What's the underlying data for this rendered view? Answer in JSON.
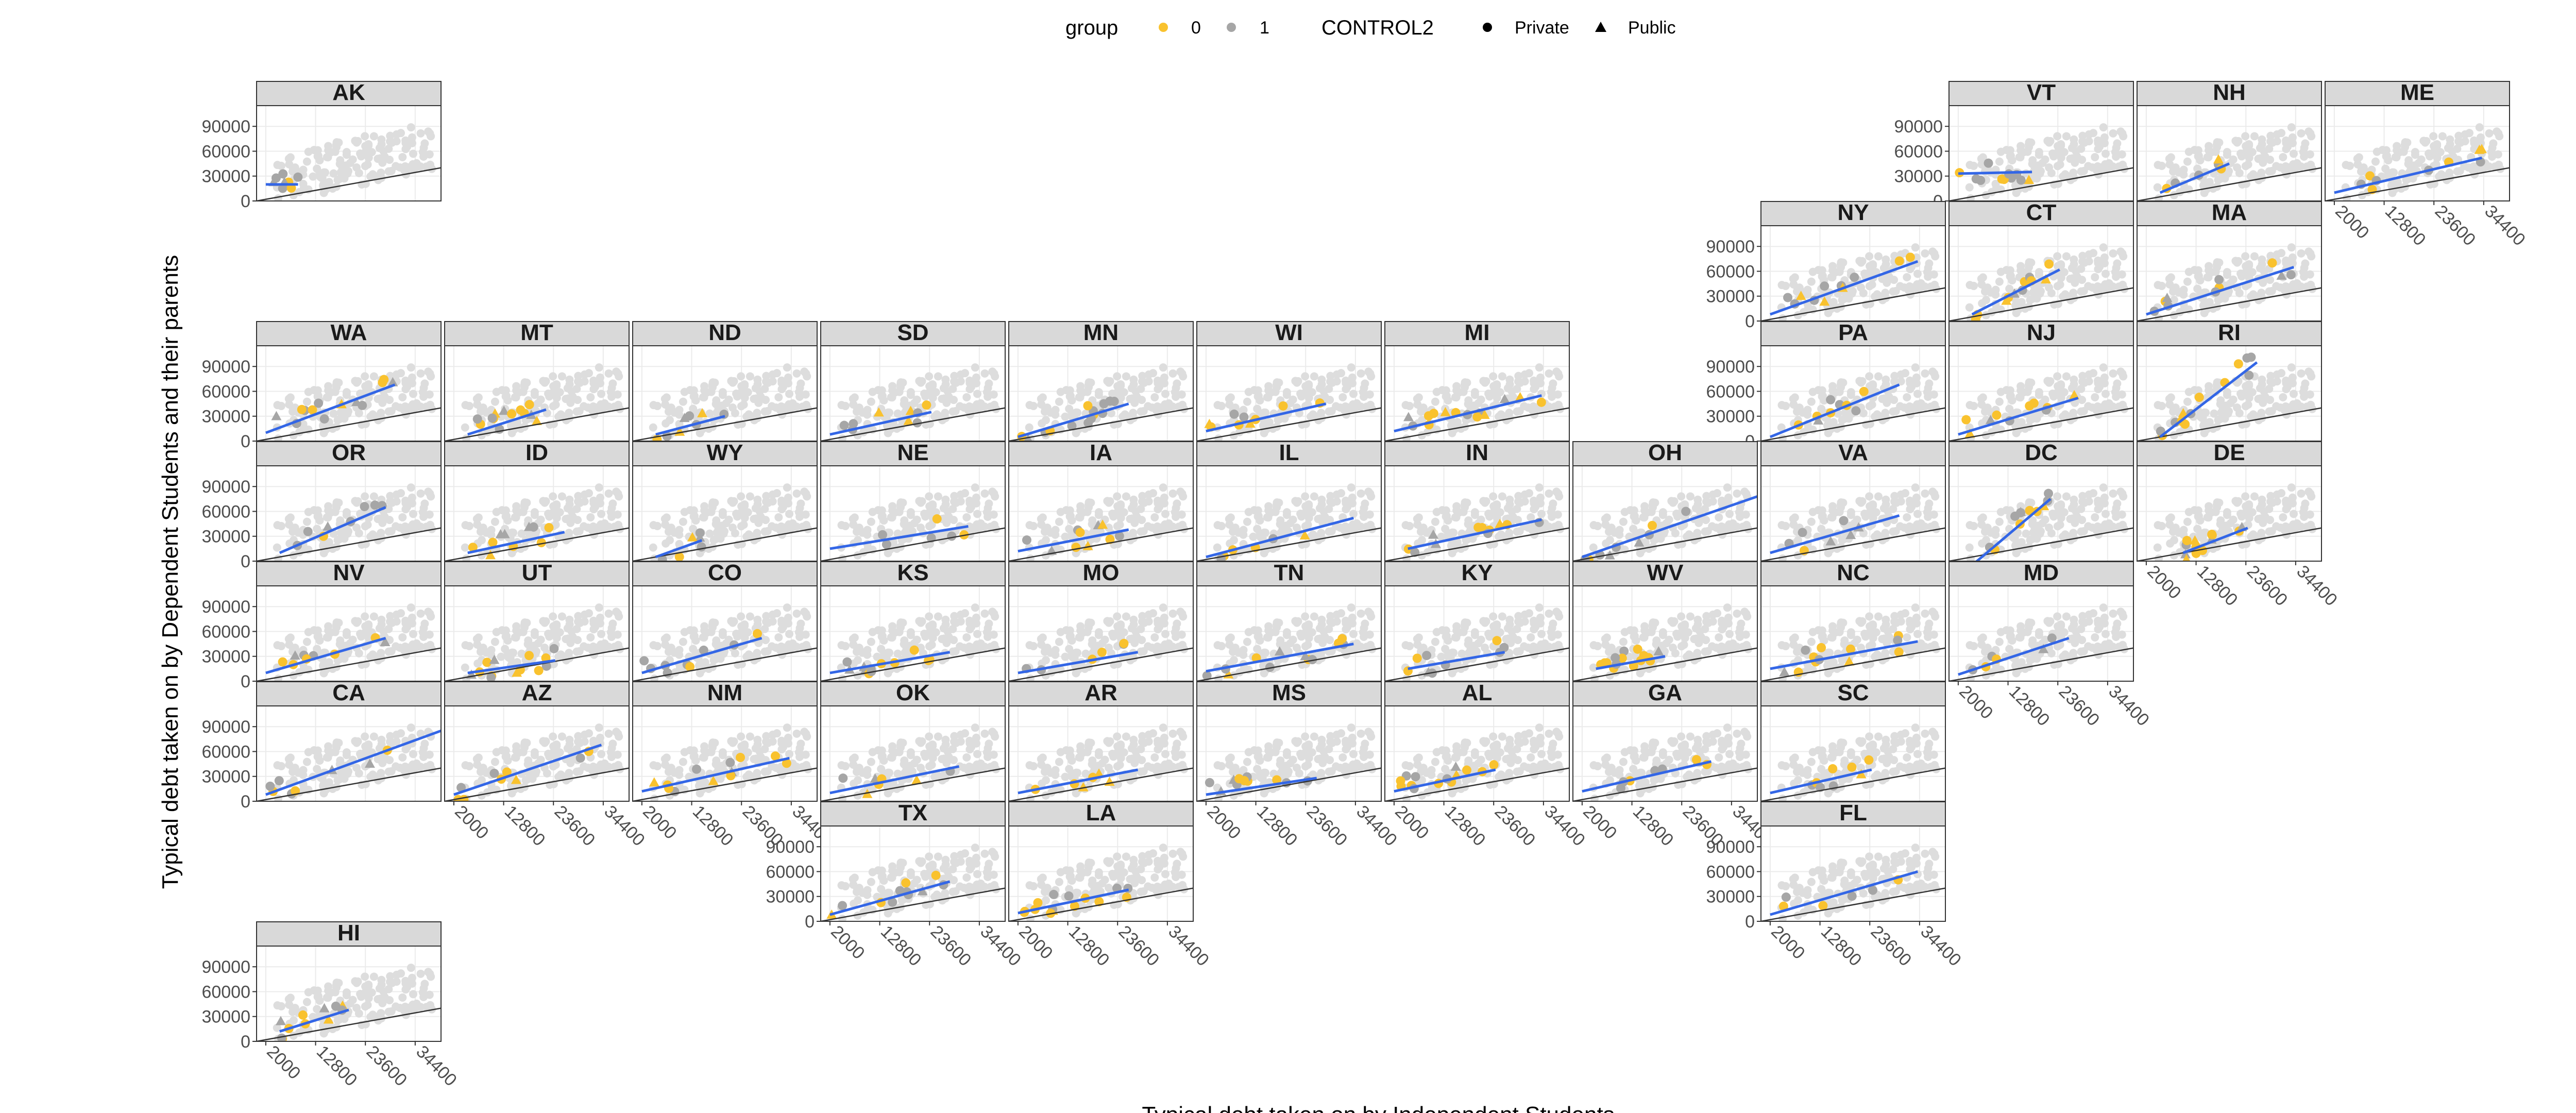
{
  "chart_data": {
    "type": "scatter",
    "xlabel": "Typical debt taken on by Independent Students",
    "ylabel": "Typical debt taken on by Dependent Students and their parents",
    "xticks": [
      2000,
      12800,
      23600,
      34400
    ],
    "yticks": [
      0,
      30000,
      60000,
      90000
    ],
    "xlim": [
      0,
      40000
    ],
    "ylim": [
      0,
      115000
    ],
    "reference_line": {
      "intercept": 0,
      "slope": 1
    },
    "legend": {
      "group_title": "group",
      "group_items": [
        {
          "label": "0",
          "color": "#F9C22E"
        },
        {
          "label": "1",
          "color": "#A6A6A6"
        }
      ],
      "shape_title": "CONTROL2",
      "shape_items": [
        {
          "label": "Private",
          "shape": "circle"
        },
        {
          "label": "Public",
          "shape": "triangle"
        }
      ]
    },
    "colors": {
      "group0": "#F9C22E",
      "group1": "#A6A6A6",
      "background_points": "#DDDDDD",
      "fit_line": "#3366E6",
      "reference_line": "#333333",
      "strip": "#D9D9D9"
    },
    "panels": [
      {
        "state": "AK",
        "fit": [
          [
            2000,
            20000
          ],
          [
            9000,
            20000
          ]
        ]
      },
      {
        "state": "VT",
        "fit": [
          [
            2000,
            33000
          ],
          [
            18000,
            35000
          ]
        ]
      },
      {
        "state": "NH",
        "fit": [
          [
            5000,
            10000
          ],
          [
            20000,
            45000
          ]
        ]
      },
      {
        "state": "ME",
        "fit": [
          [
            2000,
            10000
          ],
          [
            34000,
            52000
          ]
        ]
      },
      {
        "state": "NY",
        "fit": [
          [
            2000,
            8000
          ],
          [
            34000,
            72000
          ]
        ]
      },
      {
        "state": "CT",
        "fit": [
          [
            5000,
            8000
          ],
          [
            24000,
            62000
          ]
        ]
      },
      {
        "state": "MA",
        "fit": [
          [
            2000,
            8000
          ],
          [
            34000,
            65000
          ]
        ]
      },
      {
        "state": "WA",
        "fit": [
          [
            2000,
            10000
          ],
          [
            30000,
            68000
          ]
        ]
      },
      {
        "state": "MT",
        "fit": [
          [
            5000,
            8000
          ],
          [
            22000,
            38000
          ]
        ]
      },
      {
        "state": "ND",
        "fit": [
          [
            5000,
            8000
          ],
          [
            20000,
            30000
          ]
        ]
      },
      {
        "state": "SD",
        "fit": [
          [
            2000,
            8000
          ],
          [
            24000,
            35000
          ]
        ]
      },
      {
        "state": "MN",
        "fit": [
          [
            2000,
            5000
          ],
          [
            26000,
            45000
          ]
        ]
      },
      {
        "state": "WI",
        "fit": [
          [
            2000,
            12000
          ],
          [
            28000,
            45000
          ]
        ]
      },
      {
        "state": "MI",
        "fit": [
          [
            2000,
            12000
          ],
          [
            34000,
            55000
          ]
        ]
      },
      {
        "state": "PA",
        "fit": [
          [
            2000,
            5000
          ],
          [
            30000,
            68000
          ]
        ]
      },
      {
        "state": "NJ",
        "fit": [
          [
            2000,
            8000
          ],
          [
            28000,
            52000
          ]
        ]
      },
      {
        "state": "RI",
        "fit": [
          [
            5000,
            5000
          ],
          [
            26000,
            95000
          ]
        ]
      },
      {
        "state": "OR",
        "fit": [
          [
            5000,
            10000
          ],
          [
            28000,
            65000
          ]
        ]
      },
      {
        "state": "ID",
        "fit": [
          [
            5000,
            10000
          ],
          [
            26000,
            35000
          ]
        ]
      },
      {
        "state": "WY",
        "fit": [
          [
            5000,
            5000
          ],
          [
            15000,
            25000
          ]
        ]
      },
      {
        "state": "NE",
        "fit": [
          [
            2000,
            15000
          ],
          [
            32000,
            42000
          ]
        ]
      },
      {
        "state": "IA",
        "fit": [
          [
            2000,
            12000
          ],
          [
            26000,
            38000
          ]
        ]
      },
      {
        "state": "IL",
        "fit": [
          [
            2000,
            5000
          ],
          [
            34000,
            52000
          ]
        ]
      },
      {
        "state": "IN",
        "fit": [
          [
            5000,
            15000
          ],
          [
            34000,
            50000
          ]
        ]
      },
      {
        "state": "OH",
        "fit": [
          [
            2000,
            5000
          ],
          [
            40000,
            78000
          ]
        ]
      },
      {
        "state": "VA",
        "fit": [
          [
            2000,
            10000
          ],
          [
            30000,
            55000
          ]
        ]
      },
      {
        "state": "DC",
        "fit": [
          [
            5000,
            -5000
          ],
          [
            22000,
            75000
          ]
        ]
      },
      {
        "state": "DE",
        "fit": [
          [
            10000,
            10000
          ],
          [
            24000,
            40000
          ]
        ]
      },
      {
        "state": "NV",
        "fit": [
          [
            2000,
            10000
          ],
          [
            28000,
            52000
          ]
        ]
      },
      {
        "state": "UT",
        "fit": [
          [
            5000,
            10000
          ],
          [
            24000,
            25000
          ]
        ]
      },
      {
        "state": "CO",
        "fit": [
          [
            2000,
            10000
          ],
          [
            28000,
            52000
          ]
        ]
      },
      {
        "state": "KS",
        "fit": [
          [
            2000,
            10000
          ],
          [
            28000,
            35000
          ]
        ]
      },
      {
        "state": "MO",
        "fit": [
          [
            2000,
            10000
          ],
          [
            28000,
            35000
          ]
        ]
      },
      {
        "state": "TN",
        "fit": [
          [
            2000,
            12000
          ],
          [
            34000,
            45000
          ]
        ]
      },
      {
        "state": "KY",
        "fit": [
          [
            5000,
            15000
          ],
          [
            26000,
            35000
          ]
        ]
      },
      {
        "state": "WV",
        "fit": [
          [
            5000,
            15000
          ],
          [
            20000,
            30000
          ]
        ]
      },
      {
        "state": "NC",
        "fit": [
          [
            2000,
            15000
          ],
          [
            34000,
            48000
          ]
        ]
      },
      {
        "state": "MD",
        "fit": [
          [
            2000,
            8000
          ],
          [
            26000,
            52000
          ]
        ]
      },
      {
        "state": "CA",
        "fit": [
          [
            2000,
            8000
          ],
          [
            40000,
            85000
          ]
        ]
      },
      {
        "state": "AZ",
        "fit": [
          [
            2000,
            8000
          ],
          [
            34000,
            68000
          ]
        ]
      },
      {
        "state": "NM",
        "fit": [
          [
            2000,
            12000
          ],
          [
            34000,
            52000
          ]
        ]
      },
      {
        "state": "OK",
        "fit": [
          [
            2000,
            10000
          ],
          [
            30000,
            42000
          ]
        ]
      },
      {
        "state": "AR",
        "fit": [
          [
            2000,
            10000
          ],
          [
            28000,
            38000
          ]
        ]
      },
      {
        "state": "MS",
        "fit": [
          [
            2000,
            8000
          ],
          [
            26000,
            28000
          ]
        ]
      },
      {
        "state": "AL",
        "fit": [
          [
            2000,
            12000
          ],
          [
            24000,
            38000
          ]
        ]
      },
      {
        "state": "GA",
        "fit": [
          [
            2000,
            12000
          ],
          [
            30000,
            48000
          ]
        ]
      },
      {
        "state": "SC",
        "fit": [
          [
            2000,
            10000
          ],
          [
            24000,
            38000
          ]
        ]
      },
      {
        "state": "TX",
        "fit": [
          [
            2000,
            8000
          ],
          [
            28000,
            48000
          ]
        ]
      },
      {
        "state": "LA",
        "fit": [
          [
            2000,
            10000
          ],
          [
            26000,
            38000
          ]
        ]
      },
      {
        "state": "FL",
        "fit": [
          [
            2000,
            8000
          ],
          [
            34000,
            60000
          ]
        ]
      },
      {
        "state": "HI",
        "fit": [
          [
            5000,
            12000
          ],
          [
            20000,
            38000
          ]
        ]
      }
    ]
  }
}
